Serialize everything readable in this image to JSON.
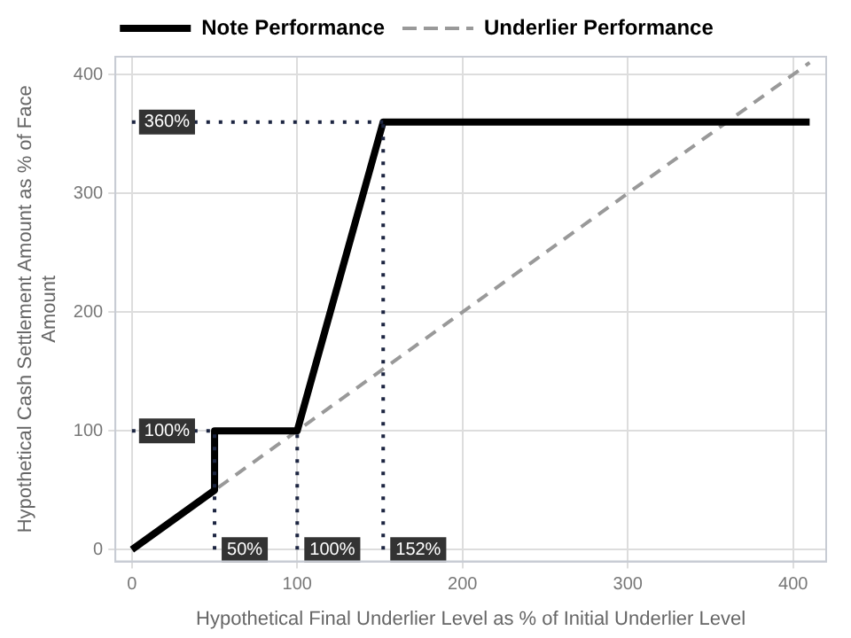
{
  "chart_data": {
    "type": "line",
    "xlabel": "Hypothetical Final Underlier Level as % of Initial Underlier Level",
    "ylabel": "Hypothetical Cash Settlement Amount as % of Face Amount",
    "series": [
      {
        "name": "Note Performance",
        "color": "#000000",
        "x": [
          0,
          50,
          50,
          100,
          152,
          410
        ],
        "values": [
          0,
          50,
          100,
          100,
          360,
          360
        ],
        "line_style": "solid"
      },
      {
        "name": "Underlier Performance",
        "color": "#999999",
        "x": [
          0,
          410
        ],
        "values": [
          0,
          410
        ],
        "line_style": "dashed"
      }
    ],
    "xlim": [
      -10,
      420
    ],
    "ylim": [
      -10,
      415
    ],
    "xticks": [
      0,
      100,
      200,
      300,
      400
    ],
    "yticks": [
      0,
      100,
      200,
      300,
      400
    ],
    "ref_lines": [
      {
        "axis": "y",
        "value": 360,
        "label": "360%",
        "color": "#1c2541",
        "line_style": "dotted"
      },
      {
        "axis": "y",
        "value": 100,
        "label": "100%",
        "color": "#1c2541",
        "line_style": "dotted"
      },
      {
        "axis": "x",
        "value": 50,
        "label": "50%",
        "color": "#1c2541",
        "line_style": "dotted"
      },
      {
        "axis": "x",
        "value": 100,
        "label": "100%",
        "color": "#1c2541",
        "line_style": "dotted"
      },
      {
        "axis": "x",
        "value": 152,
        "label": "152%",
        "color": "#1c2541",
        "line_style": "dotted"
      }
    ],
    "grid": true,
    "legend": "top",
    "marker": "none"
  }
}
